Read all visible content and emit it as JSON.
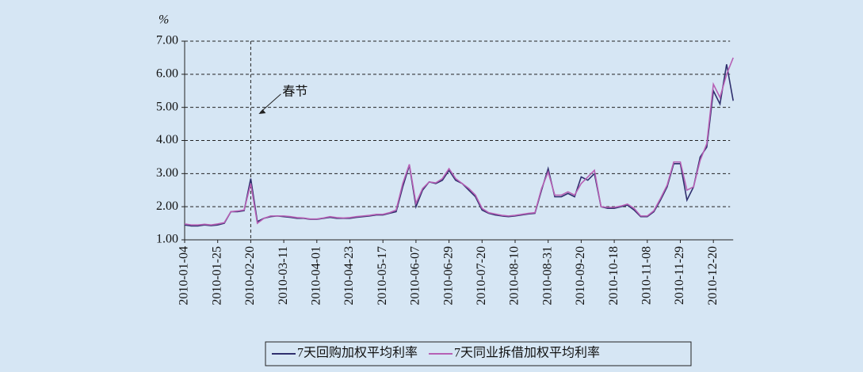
{
  "chart_data": {
    "type": "line",
    "y_unit": "%",
    "categories": [
      "2010-01-04",
      null,
      null,
      null,
      null,
      "2010-01-25",
      null,
      null,
      null,
      null,
      "2010-02-20",
      null,
      null,
      null,
      null,
      "2010-03-11",
      null,
      null,
      null,
      null,
      "2010-04-01",
      null,
      null,
      null,
      null,
      "2010-04-23",
      null,
      null,
      null,
      null,
      "2010-05-17",
      null,
      null,
      null,
      null,
      "2010-06-07",
      null,
      null,
      null,
      null,
      "2010-06-29",
      null,
      null,
      null,
      null,
      "2010-07-20",
      null,
      null,
      null,
      null,
      "2010-08-10",
      null,
      null,
      null,
      null,
      "2010-08-31",
      null,
      null,
      null,
      null,
      "2010-09-20",
      null,
      null,
      null,
      null,
      "2010-10-18",
      null,
      null,
      null,
      null,
      "2010-11-08",
      null,
      null,
      null,
      null,
      "2010-11-29",
      null,
      null,
      null,
      null,
      "2010-12-20",
      null,
      null,
      null
    ],
    "series": [
      {
        "name": "7天回购加权平均利率",
        "color": "#2f2f6e",
        "values": [
          1.45,
          1.42,
          1.42,
          1.45,
          1.43,
          1.45,
          1.5,
          1.85,
          1.85,
          1.88,
          2.85,
          1.55,
          1.65,
          1.7,
          1.72,
          1.7,
          1.68,
          1.65,
          1.65,
          1.62,
          1.62,
          1.65,
          1.68,
          1.65,
          1.65,
          1.65,
          1.68,
          1.7,
          1.72,
          1.75,
          1.75,
          1.8,
          1.85,
          2.6,
          3.25,
          2.0,
          2.5,
          2.75,
          2.7,
          2.8,
          3.1,
          2.8,
          2.7,
          2.5,
          2.3,
          1.9,
          1.8,
          1.75,
          1.72,
          1.7,
          1.72,
          1.75,
          1.78,
          1.8,
          2.5,
          3.15,
          2.3,
          2.3,
          2.4,
          2.3,
          2.9,
          2.8,
          3.0,
          2.0,
          1.95,
          1.95,
          2.0,
          2.05,
          1.9,
          1.7,
          1.7,
          1.85,
          2.2,
          2.6,
          3.3,
          3.3,
          2.2,
          2.6,
          3.5,
          3.8,
          5.5,
          5.1,
          6.3,
          5.2
        ]
      },
      {
        "name": "7天同业拆借加权平均利率",
        "color": "#b660b4",
        "values": [
          1.48,
          1.45,
          1.45,
          1.47,
          1.45,
          1.48,
          1.52,
          1.85,
          1.87,
          1.9,
          2.7,
          1.5,
          1.65,
          1.72,
          1.72,
          1.72,
          1.7,
          1.67,
          1.66,
          1.63,
          1.63,
          1.66,
          1.7,
          1.67,
          1.66,
          1.67,
          1.7,
          1.72,
          1.74,
          1.77,
          1.77,
          1.82,
          1.9,
          2.7,
          3.28,
          2.1,
          2.55,
          2.75,
          2.72,
          2.85,
          3.15,
          2.85,
          2.7,
          2.55,
          2.35,
          1.95,
          1.82,
          1.78,
          1.74,
          1.72,
          1.74,
          1.77,
          1.8,
          1.82,
          2.55,
          3.05,
          2.35,
          2.35,
          2.45,
          2.35,
          2.7,
          2.9,
          3.1,
          2.0,
          1.98,
          1.98,
          2.02,
          2.08,
          1.95,
          1.72,
          1.72,
          1.88,
          2.25,
          2.65,
          3.35,
          3.35,
          2.5,
          2.6,
          3.4,
          3.9,
          5.7,
          5.3,
          6.0,
          6.5
        ]
      }
    ],
    "ylim": [
      1,
      7
    ],
    "yticks": [
      {
        "value": 1,
        "label": "1.00"
      },
      {
        "value": 2,
        "label": "2.00"
      },
      {
        "value": 3,
        "label": "3.00"
      },
      {
        "value": 4,
        "label": "4.00"
      },
      {
        "value": 5,
        "label": "5.00"
      },
      {
        "value": 6,
        "label": "6.00"
      },
      {
        "value": 7,
        "label": "7.00"
      }
    ],
    "grid": true,
    "annotation": {
      "text": "春节",
      "at": "2010-02-20"
    },
    "legend": "bottom"
  }
}
